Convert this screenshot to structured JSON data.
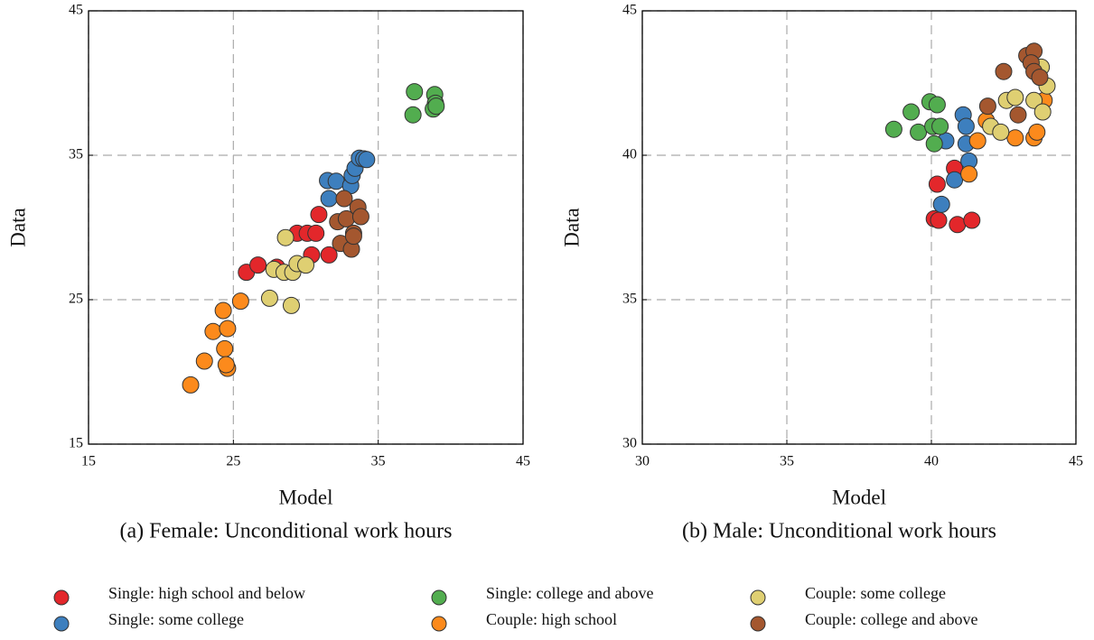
{
  "chart_data": [
    {
      "type": "scatter",
      "title": "(a) Female: Unconditional work hours",
      "xlabel": "Model",
      "ylabel": "Data",
      "xlim": [
        15,
        45
      ],
      "ylim": [
        15,
        45
      ],
      "xticks": [
        15,
        25,
        35,
        45
      ],
      "yticks": [
        15,
        25,
        35,
        45
      ],
      "grid": true,
      "series": [
        {
          "name": "Single: high school and below",
          "color": "#e3272b",
          "x": [
            25.9,
            26.7,
            28.0,
            29.4,
            30.1,
            30.7,
            30.9,
            30.4,
            31.6
          ],
          "y": [
            26.9,
            27.4,
            27.25,
            29.6,
            29.6,
            29.6,
            30.9,
            28.1,
            28.1
          ]
        },
        {
          "name": "Single: some college",
          "color": "#3d7fbe",
          "x": [
            31.5,
            32.1,
            31.6,
            33.1,
            33.2,
            33.4,
            33.7,
            34.0,
            34.2
          ],
          "y": [
            33.25,
            33.2,
            32.0,
            32.9,
            33.6,
            34.1,
            34.8,
            34.75,
            34.7
          ]
        },
        {
          "name": "Single: college and above",
          "color": "#52ad4f",
          "x": [
            37.5,
            38.9,
            38.95,
            38.8,
            37.4,
            39.0
          ],
          "y": [
            39.4,
            39.2,
            38.6,
            38.2,
            37.8,
            38.4
          ]
        },
        {
          "name": "Couple: high school",
          "color": "#fc8a1c",
          "x": [
            24.3,
            25.5,
            23.6,
            24.6,
            24.4,
            23.0,
            24.6,
            24.5,
            22.05
          ],
          "y": [
            24.25,
            24.9,
            22.8,
            23.0,
            21.6,
            20.75,
            20.25,
            20.5,
            19.1
          ]
        },
        {
          "name": "Couple: some college",
          "color": "#dfcf72",
          "x": [
            28.6,
            27.8,
            28.5,
            29.1,
            29.4,
            30.0,
            27.5,
            29.0
          ],
          "y": [
            29.3,
            27.1,
            26.9,
            26.9,
            27.5,
            27.4,
            25.1,
            24.6
          ]
        },
        {
          "name": "Couple: college and above",
          "color": "#a4572f",
          "x": [
            32.65,
            33.6,
            32.2,
            32.8,
            33.8,
            33.3,
            32.4,
            33.15,
            33.3
          ],
          "y": [
            32.0,
            31.4,
            30.4,
            30.6,
            30.75,
            29.6,
            28.9,
            28.5,
            29.4
          ]
        }
      ]
    },
    {
      "type": "scatter",
      "title": "(b) Male: Unconditional work hours",
      "xlabel": "Model",
      "ylabel": "Data",
      "xlim": [
        30,
        45
      ],
      "ylim": [
        30,
        45
      ],
      "xticks": [
        30,
        35,
        40,
        45
      ],
      "yticks": [
        30,
        35,
        40,
        45
      ],
      "grid": true,
      "series": [
        {
          "color": "#e3272b",
          "x": [
            40.2,
            40.1,
            40.25,
            40.9,
            41.4,
            40.8
          ],
          "y": [
            39.0,
            37.8,
            37.75,
            37.6,
            37.75,
            39.55
          ]
        },
        {
          "color": "#3d7fbe",
          "x": [
            41.1,
            41.2,
            40.5,
            41.2,
            41.3,
            40.8,
            40.35
          ],
          "y": [
            41.4,
            41.0,
            40.5,
            40.4,
            39.8,
            39.15,
            38.3
          ]
        },
        {
          "color": "#52ad4f",
          "x": [
            39.95,
            40.2,
            39.3,
            38.7,
            39.55,
            40.05,
            40.3,
            40.1
          ],
          "y": [
            41.85,
            41.75,
            41.5,
            40.9,
            40.8,
            41.0,
            41.0,
            40.4
          ]
        },
        {
          "color": "#fc8a1c",
          "x": [
            41.6,
            41.3,
            41.9,
            42.9,
            43.55,
            43.65,
            43.9
          ],
          "y": [
            40.5,
            39.35,
            41.2,
            40.6,
            40.6,
            40.8,
            41.9
          ]
        },
        {
          "color": "#dfcf72",
          "x": [
            42.05,
            42.4,
            42.6,
            42.9,
            43.55,
            43.8,
            44.0,
            43.85
          ],
          "y": [
            41.0,
            40.8,
            41.9,
            42.0,
            41.9,
            43.05,
            42.4,
            41.5
          ]
        },
        {
          "color": "#a4572f",
          "x": [
            42.5,
            41.95,
            43.0,
            43.3,
            43.55,
            43.45,
            43.55,
            43.75
          ],
          "y": [
            42.9,
            41.7,
            41.4,
            43.45,
            43.6,
            43.2,
            42.9,
            42.7
          ]
        }
      ]
    }
  ]
}
